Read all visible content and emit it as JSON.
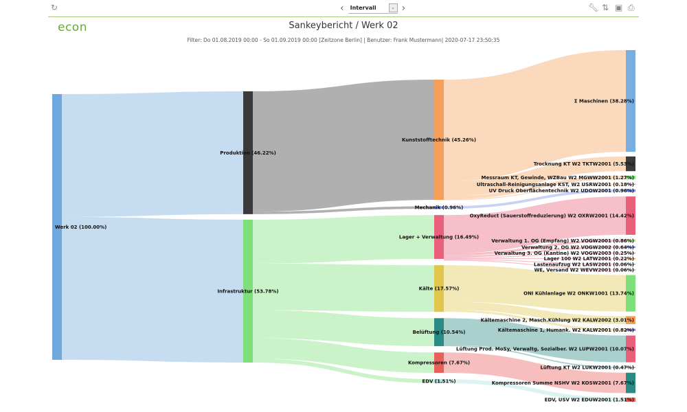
{
  "toolbar": {
    "refresh_icon": "refresh-icon",
    "interval_label": "Intervall",
    "icons": [
      "wrench-icon",
      "sort-icon",
      "save-icon",
      "print-icon"
    ]
  },
  "header": {
    "logo": "econ",
    "title": "Sankeybericht / Werk 02",
    "subtitle": "Filter: Do 01.08.2019 00:00 - So 01.09.2019 00:00 [Zeitzone Berlin] | Benutzer: Frank Mustermann| 2020-07-17 23:50:35"
  },
  "chart_data": {
    "type": "sankey",
    "nodes": [
      {
        "id": "werk",
        "label": "Werk 02 (100.00%)",
        "value": 100.0,
        "column": 0,
        "color": "#6fa8dc"
      },
      {
        "id": "prod",
        "label": "Produktion (46.22%)",
        "value": 46.22,
        "column": 1,
        "color": "#3a3a3c"
      },
      {
        "id": "infra",
        "label": "Infrastruktur (53.78%)",
        "value": 53.78,
        "column": 1,
        "color": "#7de07a"
      },
      {
        "id": "kunst",
        "label": "Kunststofftechnik (45.26%)",
        "value": 45.26,
        "column": 2,
        "color": "#f5a05a"
      },
      {
        "id": "mech",
        "label": "Mechanik (0.96%)",
        "value": 0.96,
        "column": 2,
        "color": "#7a8fe0"
      },
      {
        "id": "lager",
        "label": "Lager + Verwaltung (16.49%)",
        "value": 16.49,
        "column": 2,
        "color": "#e8607a"
      },
      {
        "id": "kaelte",
        "label": "Kälte (17.57%)",
        "value": 17.57,
        "column": 2,
        "color": "#e0c64a"
      },
      {
        "id": "belueft",
        "label": "Belüftung (10.54%)",
        "value": 10.54,
        "column": 2,
        "color": "#2a8a84"
      },
      {
        "id": "kompr",
        "label": "Kompressoren (7.67%)",
        "value": 7.67,
        "column": 2,
        "color": "#e8605a"
      },
      {
        "id": "edv",
        "label": "EDV (1.51%)",
        "value": 1.51,
        "column": 2,
        "color": "#a8e0dc"
      },
      {
        "id": "masch",
        "label": "Σ Maschinen (38.28%)",
        "value": 38.28,
        "column": 3,
        "color": "#78aee0"
      },
      {
        "id": "trock",
        "label": "Trocknung KT W2 TKTW2001 (5.53%)",
        "value": 5.53,
        "column": 3,
        "color": "#3a3a3c"
      },
      {
        "id": "mess",
        "label": "Messraum KT, Gewinde, WZBau W2 MGWW2001 (1.27%)",
        "value": 1.27,
        "column": 3,
        "color": "#7de07a"
      },
      {
        "id": "ultra",
        "label": "Ultraschall-Reinigungsanlage KST, W2 USRW2001 (0.18%)",
        "value": 0.18,
        "column": 3,
        "color": "#aaaaaa"
      },
      {
        "id": "uv",
        "label": "UV Druck Oberflächentechnik W2 UDOW2001 (0.96%)",
        "value": 0.96,
        "column": 3,
        "color": "#7a8fe0"
      },
      {
        "id": "oxy",
        "label": "OxyReduct (Sauerstoffreduzierung) W2 OXRW2001 (14.42%)",
        "value": 14.42,
        "column": 3,
        "color": "#e8607a"
      },
      {
        "id": "v1",
        "label": "Verwaltung 1. OG (Empfang) W2 VOGW2001 (0.86%)",
        "value": 0.86,
        "column": 3,
        "color": "#b0e08a"
      },
      {
        "id": "v2",
        "label": "Verwaltung 2. OG W2 VOGW2002 (0.64%)",
        "value": 0.64,
        "column": 3,
        "color": "#7a8fe0"
      },
      {
        "id": "v3",
        "label": "Verwaltung 3. OG (Kantine) W2 VOGW2003 (0.25%)",
        "value": 0.25,
        "column": 3,
        "color": "#aaaaaa"
      },
      {
        "id": "l100",
        "label": "Lager 100 W2 LATW2001 (0.22%)",
        "value": 0.22,
        "column": 3,
        "color": "#f5a05a"
      },
      {
        "id": "last",
        "label": "Lastenaufzug W2 LASW2001 (0.06%)",
        "value": 0.06,
        "column": 3,
        "color": "#aaaaaa"
      },
      {
        "id": "we",
        "label": "WE, Versand W2 WEVW2001 (0.06%)",
        "value": 0.06,
        "column": 3,
        "color": "#aaaaaa"
      },
      {
        "id": "oni",
        "label": "ONI Kühlanlage W2 ONKW1001 (13.74%)",
        "value": 13.74,
        "column": 3,
        "color": "#7de07a"
      },
      {
        "id": "km2",
        "label": "Kältemaschine 2, Masch.Kühlung W2 KALW2002 (3.01%)",
        "value": 3.01,
        "column": 3,
        "color": "#f5a05a"
      },
      {
        "id": "km1",
        "label": "Kältemaschine 1, Humank. W2 KALW2001 (0.82%)",
        "value": 0.82,
        "column": 3,
        "color": "#8a7ae0"
      },
      {
        "id": "lprod",
        "label": "Lüftung Prod. MoSy, Verwaltg, Sozialber. W2 LUPW2001 (10.07%)",
        "value": 10.07,
        "column": 3,
        "color": "#e8607a"
      },
      {
        "id": "lkt",
        "label": "Lüftung KT W2 LUKW2001 (0.47%)",
        "value": 0.47,
        "column": 3,
        "color": "#aaaaaa"
      },
      {
        "id": "kosw",
        "label": "Kompressoren Summe NSHV W2 KOSW2001 (7.67%)",
        "value": 7.67,
        "column": 3,
        "color": "#2a8a84"
      },
      {
        "id": "eduw",
        "label": "EDV, USV W2 EDUW2001 (1.51%)",
        "value": 1.51,
        "column": 3,
        "color": "#e8605a"
      }
    ],
    "links": [
      [
        "werk",
        "prod",
        46.22
      ],
      [
        "werk",
        "infra",
        53.78
      ],
      [
        "prod",
        "kunst",
        45.26
      ],
      [
        "prod",
        "mech",
        0.96
      ],
      [
        "infra",
        "lager",
        16.49
      ],
      [
        "infra",
        "kaelte",
        17.57
      ],
      [
        "infra",
        "belueft",
        10.54
      ],
      [
        "infra",
        "kompr",
        7.67
      ],
      [
        "infra",
        "edv",
        1.51
      ],
      [
        "kunst",
        "masch",
        38.28
      ],
      [
        "kunst",
        "trock",
        5.53
      ],
      [
        "kunst",
        "mess",
        1.27
      ],
      [
        "kunst",
        "ultra",
        0.18
      ],
      [
        "mech",
        "uv",
        0.96
      ],
      [
        "lager",
        "oxy",
        14.42
      ],
      [
        "lager",
        "v1",
        0.86
      ],
      [
        "lager",
        "v2",
        0.64
      ],
      [
        "lager",
        "v3",
        0.25
      ],
      [
        "lager",
        "l100",
        0.22
      ],
      [
        "lager",
        "last",
        0.06
      ],
      [
        "lager",
        "we",
        0.06
      ],
      [
        "kaelte",
        "oni",
        13.74
      ],
      [
        "kaelte",
        "km2",
        3.01
      ],
      [
        "kaelte",
        "km1",
        0.82
      ],
      [
        "belueft",
        "lprod",
        10.07
      ],
      [
        "belueft",
        "lkt",
        0.47
      ],
      [
        "kompr",
        "kosw",
        7.67
      ],
      [
        "edv",
        "eduw",
        1.51
      ]
    ]
  }
}
